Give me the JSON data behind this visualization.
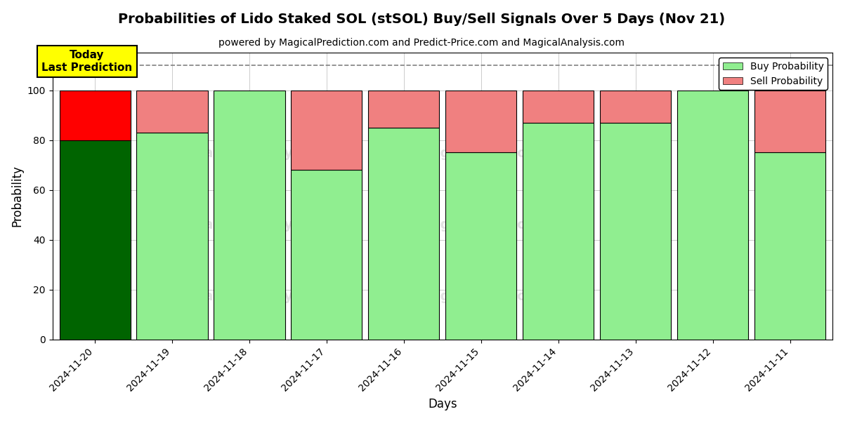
{
  "title": "Probabilities of Lido Staked SOL (stSOL) Buy/Sell Signals Over 5 Days (Nov 21)",
  "subtitle": "powered by MagicalPrediction.com and Predict-Price.com and MagicalAnalysis.com",
  "xlabel": "Days",
  "ylabel": "Probability",
  "categories": [
    "2024-11-20",
    "2024-11-19",
    "2024-11-18",
    "2024-11-17",
    "2024-11-16",
    "2024-11-15",
    "2024-11-14",
    "2024-11-13",
    "2024-11-12",
    "2024-11-11"
  ],
  "buy_values": [
    80,
    83,
    100,
    68,
    85,
    75,
    87,
    87,
    100,
    75
  ],
  "sell_values": [
    20,
    17,
    0,
    32,
    15,
    25,
    13,
    13,
    0,
    25
  ],
  "today_buy_color": "#006400",
  "today_sell_color": "#FF0000",
  "buy_color": "#90EE90",
  "sell_color": "#F08080",
  "today_annotation": "Today\nLast Prediction",
  "annotation_bg_color": "#FFFF00",
  "ylim": [
    0,
    115
  ],
  "yticks": [
    0,
    20,
    40,
    60,
    80,
    100
  ],
  "dashed_line_y": 110,
  "background_color": "#ffffff",
  "grid_color": "#cccccc",
  "legend_buy": "Buy Probability",
  "legend_sell": "Sell Probability",
  "bar_width": 0.92
}
